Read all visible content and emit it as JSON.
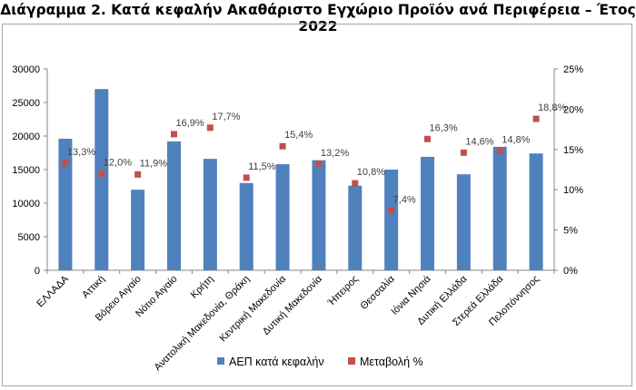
{
  "title": "Διάγραμμα 2. Κατά κεφαλήν Ακαθάριστο Εγχώριο Προϊόν ανά Περιφέρεια – Έτος 2022",
  "chart_data": {
    "type": "bar",
    "categories": [
      "ΕΛΛΑΔΑ",
      "Αττική",
      "Βόρειο Αιγαίο",
      "Νότιο Αιγαίο",
      "Κρήτη",
      "Ανατολική Μακεδονία, Θράκη",
      "Κεντρική Μακεδονία",
      "Δυτική Μακεδονία",
      "Ήπειρος",
      "Θεσσαλία",
      "Ιόνια Νησιά",
      "Δυτική Ελλάδα",
      "Στερεά Ελλάδα",
      "Πελοπόννησος"
    ],
    "series": [
      {
        "name": "ΑΕΠ κατά κεφαλήν",
        "type": "bar",
        "axis": "left",
        "color": "#4f81bd",
        "values": [
          19600,
          27000,
          12000,
          19200,
          16600,
          13000,
          15800,
          16400,
          12600,
          15000,
          16900,
          14300,
          18400,
          17400
        ]
      },
      {
        "name": "Μεταβολή %",
        "type": "scatter",
        "axis": "right",
        "color": "#c0504d",
        "values": [
          13.3,
          12.0,
          11.9,
          16.9,
          17.7,
          11.5,
          15.4,
          13.2,
          10.8,
          7.4,
          16.3,
          14.6,
          14.8,
          18.8
        ],
        "labels": [
          "13,3%",
          "12,0%",
          "11,9%",
          "16,9%",
          "17,7%",
          "11,5%",
          "15,4%",
          "13,2%",
          "10,8%",
          "7,4%",
          "16,3%",
          "14,6%",
          "14,8%",
          "18,8%"
        ]
      }
    ],
    "y_left": {
      "min": 0,
      "max": 30000,
      "ticks": [
        "0",
        "5000",
        "10000",
        "15000",
        "20000",
        "25000",
        "30000"
      ]
    },
    "y_right": {
      "min": 0,
      "max": 25,
      "ticks": [
        "0%",
        "5%",
        "10%",
        "15%",
        "20%",
        "25%"
      ]
    },
    "grid": false,
    "legend": "bottom"
  }
}
